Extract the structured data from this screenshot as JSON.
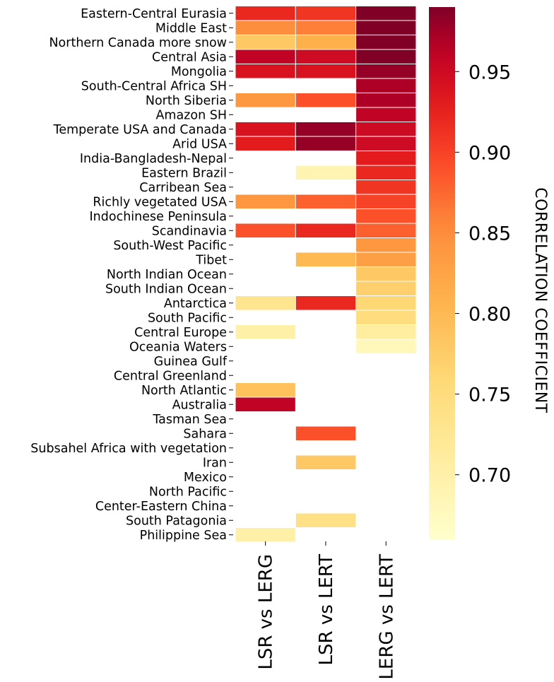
{
  "chart_data": {
    "type": "heatmap",
    "rows": [
      "Eastern-Central Eurasia",
      "Middle East",
      "Northern Canada more snow",
      "Central Asia",
      "Mongolia",
      "South-Central Africa SH",
      "North Siberia",
      "Amazon SH",
      "Temperate USA and Canada",
      "Arid USA",
      "India-Bangladesh-Nepal",
      "Eastern Brazil",
      "Carribean Sea",
      "Richly vegetated USA",
      "Indochinese Peninsula",
      "Scandinavia",
      "South-West Pacific",
      "Tibet",
      "North Indian Ocean",
      "South Indian Ocean",
      "Antarctica",
      "South Pacific",
      "Central Europe",
      "Oceania Waters",
      "Guinea Gulf",
      "Central Greenland",
      "North Atlantic",
      "Australia",
      "Tasman Sea",
      "Sahara",
      "Subsahel Africa with vegetation",
      "Iran",
      "Mexico",
      "North Pacific",
      "Center-Eastern China",
      "South Patagonia",
      "Philippine Sea"
    ],
    "columns": [
      "LSR vs LERG",
      "LSR vs LERT",
      "LERG vs LERT"
    ],
    "values": [
      [
        0.92,
        0.91,
        0.99
      ],
      [
        0.85,
        0.86,
        0.99
      ],
      [
        0.78,
        0.81,
        0.99
      ],
      [
        0.96,
        0.95,
        0.99
      ],
      [
        0.94,
        0.94,
        0.98
      ],
      [
        null,
        null,
        0.97
      ],
      [
        0.84,
        0.89,
        0.97
      ],
      [
        null,
        null,
        0.96
      ],
      [
        0.94,
        0.98,
        0.95
      ],
      [
        0.93,
        0.98,
        0.95
      ],
      [
        null,
        null,
        0.93
      ],
      [
        null,
        0.69,
        0.92
      ],
      [
        null,
        null,
        0.91
      ],
      [
        0.84,
        0.88,
        0.9
      ],
      [
        null,
        null,
        0.89
      ],
      [
        0.89,
        0.92,
        0.88
      ],
      [
        null,
        null,
        0.84
      ],
      [
        null,
        0.8,
        0.83
      ],
      [
        null,
        null,
        0.78
      ],
      [
        null,
        null,
        0.77
      ],
      [
        0.73,
        0.92,
        0.76
      ],
      [
        null,
        null,
        0.75
      ],
      [
        0.7,
        null,
        0.71
      ],
      [
        null,
        null,
        0.68
      ],
      [
        null,
        null,
        null
      ],
      [
        null,
        null,
        null
      ],
      [
        0.79,
        null,
        null
      ],
      [
        0.96,
        null,
        null
      ],
      [
        null,
        null,
        null
      ],
      [
        null,
        0.89,
        null
      ],
      [
        null,
        null,
        null
      ],
      [
        null,
        0.78,
        null
      ],
      [
        null,
        null,
        null
      ],
      [
        null,
        null,
        null
      ],
      [
        null,
        null,
        null
      ],
      [
        null,
        0.74,
        null
      ],
      [
        0.7,
        null,
        null
      ]
    ],
    "colormap": "YlOrRd",
    "vmin": 0.66,
    "vmax": 0.99,
    "colorbar": {
      "ticks": [
        0.7,
        0.75,
        0.8,
        0.85,
        0.9,
        0.95
      ],
      "tick_labels": [
        "0.70",
        "0.75",
        "0.80",
        "0.85",
        "0.90",
        "0.95"
      ],
      "label": "CORRELATION COEFFICIENT"
    }
  }
}
